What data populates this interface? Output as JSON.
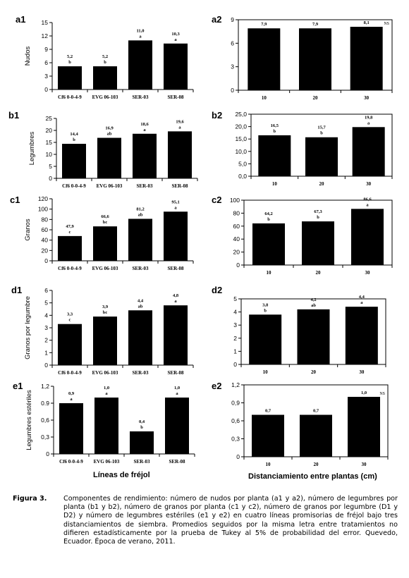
{
  "chart_data": [
    {
      "id": "a1",
      "panel_label": "a1",
      "type": "bar",
      "ylabel": "Nudos",
      "ylim": [
        0,
        15
      ],
      "yticks": [
        "0",
        "3",
        "6",
        "9",
        "12",
        "15"
      ],
      "categories": [
        "Cf6 0-0-4-9",
        "EVG 06-103",
        "SER-03",
        "SER-08"
      ],
      "values": [
        5.2,
        5.2,
        11.0,
        10.3
      ],
      "value_labels": [
        "5,2",
        "5,2",
        "11,0",
        "10,3"
      ],
      "letters": [
        "b",
        "b",
        "a",
        "a"
      ],
      "note": ""
    },
    {
      "id": "a2",
      "panel_label": "a2",
      "type": "bar",
      "ylabel": "",
      "ylim": [
        0,
        9
      ],
      "yticks": [
        "0",
        "3",
        "6",
        "9"
      ],
      "categories": [
        "10",
        "20",
        "30"
      ],
      "values": [
        7.9,
        7.9,
        8.1
      ],
      "value_labels": [
        "7,9",
        "7,9",
        "8,1"
      ],
      "letters": [
        "",
        "",
        ""
      ],
      "note": "NS"
    },
    {
      "id": "b1",
      "panel_label": "b1",
      "type": "bar",
      "ylabel": "Legumbres",
      "ylim": [
        0,
        25
      ],
      "yticks": [
        "0",
        "5",
        "10",
        "15",
        "20",
        "25"
      ],
      "categories": [
        "Cf6 0-0-4-9",
        "EVG 06-103",
        "SER-03",
        "SER-08"
      ],
      "values": [
        14.4,
        16.9,
        18.6,
        19.6
      ],
      "value_labels": [
        "14,4",
        "16,9",
        "18,6",
        "19,6"
      ],
      "letters": [
        "b",
        "ab",
        "a",
        "a"
      ],
      "note": ""
    },
    {
      "id": "b2",
      "panel_label": "b2",
      "type": "bar",
      "ylabel": "",
      "ylim": [
        0,
        25
      ],
      "yticks": [
        "0,0",
        "5,0",
        "10,0",
        "15,0",
        "20,0",
        "25,0"
      ],
      "categories": [
        "10",
        "20",
        "30"
      ],
      "values": [
        16.5,
        15.7,
        19.8
      ],
      "value_labels": [
        "16,5",
        "15,7",
        "19,8"
      ],
      "letters": [
        "b",
        "b",
        "a"
      ],
      "note": ""
    },
    {
      "id": "c1",
      "panel_label": "c1",
      "type": "bar",
      "ylabel": "Granos",
      "ylim": [
        0,
        120
      ],
      "yticks": [
        "0",
        "20",
        "40",
        "60",
        "80",
        "100",
        "120"
      ],
      "categories": [
        "Cf6 0-0-4-9",
        "EVG 06-103",
        "SER-03",
        "SER-08"
      ],
      "values": [
        47.9,
        66.6,
        81.2,
        95.1
      ],
      "value_labels": [
        "47,9",
        "66,6",
        "81,2",
        "95,1"
      ],
      "letters": [
        "c",
        "bc",
        "ab",
        "a"
      ],
      "note": ""
    },
    {
      "id": "c2",
      "panel_label": "c2",
      "type": "bar",
      "ylabel": "",
      "ylim": [
        0,
        100
      ],
      "yticks": [
        "0",
        "20",
        "40",
        "60",
        "80",
        "100"
      ],
      "categories": [
        "10",
        "20",
        "30"
      ],
      "values": [
        64.2,
        67.3,
        86.6
      ],
      "value_labels": [
        "64,2",
        "67,3",
        "86,6"
      ],
      "letters": [
        "b",
        "b",
        "a"
      ],
      "note": ""
    },
    {
      "id": "d1",
      "panel_label": "d1",
      "type": "bar",
      "ylabel": "Granos por legumbre",
      "ylim": [
        0,
        6
      ],
      "yticks": [
        "0",
        "1",
        "2",
        "3",
        "4",
        "5",
        "6"
      ],
      "categories": [
        "Cf6 0-0-4-9",
        "EVG 06-103",
        "SER-03",
        "SER-08"
      ],
      "values": [
        3.3,
        3.9,
        4.4,
        4.8
      ],
      "value_labels": [
        "3,3",
        "3,9",
        "4,4",
        "4,8"
      ],
      "letters": [
        "c",
        "bc",
        "ab",
        "a"
      ],
      "note": ""
    },
    {
      "id": "d2",
      "panel_label": "d2",
      "type": "bar",
      "ylabel": "",
      "ylim": [
        0,
        5
      ],
      "yticks": [
        "0",
        "1",
        "2",
        "3",
        "4",
        "5"
      ],
      "categories": [
        "10",
        "20",
        "30"
      ],
      "values": [
        3.8,
        4.2,
        4.4
      ],
      "value_labels": [
        "3,8",
        "4,2",
        "4,4"
      ],
      "letters": [
        "b",
        "ab",
        "a"
      ],
      "note": ""
    },
    {
      "id": "e1",
      "panel_label": "e1",
      "type": "bar",
      "ylabel": "Legumbres estériles",
      "ylim": [
        0,
        1.2
      ],
      "yticks": [
        "0",
        "0,3",
        "0,6",
        "0.9",
        "1,2"
      ],
      "categories": [
        "Cf6 0-0-4-9",
        "EVG 06-103",
        "SER-03",
        "SER-08"
      ],
      "values": [
        0.9,
        1.0,
        0.4,
        1.0
      ],
      "value_labels": [
        "0,9",
        "1,0",
        "0,4",
        "1,0"
      ],
      "letters": [
        "a",
        "a",
        "b",
        "a"
      ],
      "note": "",
      "xlabel": "Líneas de fréjol"
    },
    {
      "id": "e2",
      "panel_label": "e2",
      "type": "bar",
      "ylabel": "",
      "ylim": [
        0,
        1.2
      ],
      "yticks": [
        "0",
        "0,3",
        "0,6",
        "0,9",
        "1,2"
      ],
      "categories": [
        "10",
        "20",
        "30"
      ],
      "values": [
        0.7,
        0.7,
        1.0
      ],
      "value_labels": [
        "0,7",
        "0,7",
        "1,0"
      ],
      "letters": [
        "",
        "",
        ""
      ],
      "note": "NS",
      "xlabel": "Distanciamiento entre plantas (cm)"
    }
  ],
  "caption": {
    "figure_label": "Figura 3.",
    "text": "Componentes de rendimiento: número de nudos por planta (a1 y a2), número de legumbres por planta (b1 y b2), número de granos por planta (c1 y c2), número de granos por legumbre (D1 y D2) y número de legumbres estériles (e1 y e2) en cuatro líneas promisorias de fréjol bajo tres distanciamientos de siembra. Promedios seguidos por la misma letra entre tratamientos no difieren estadísticamente por la prueba de Tukey al 5% de probabilidad del error. Quevedo, Ecuador. Época de verano, 2011."
  }
}
